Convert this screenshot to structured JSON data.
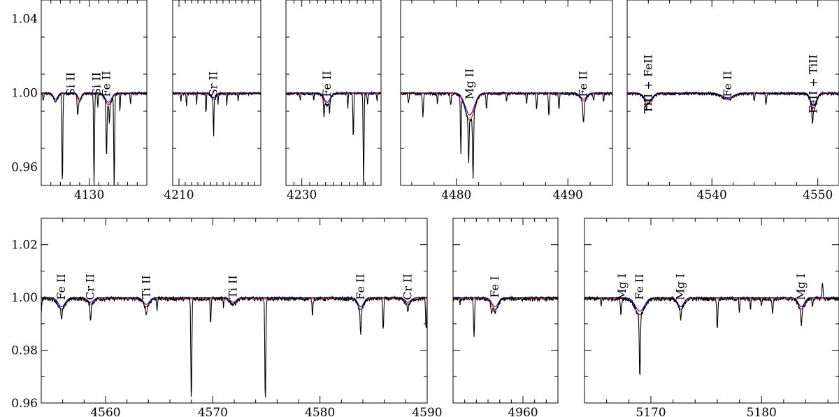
{
  "chart_data": [
    {
      "type": "line",
      "row": 1,
      "xlim": [
        4125,
        4136
      ],
      "ylim": [
        0.95,
        1.05
      ],
      "xticks": [
        4130
      ],
      "yticks": [
        0.96,
        1.0,
        1.04
      ],
      "continuum": 0.9995,
      "bands": [
        [
          4126.5,
          0.5,
          0.004
        ],
        [
          4129.0,
          0.4,
          0.004
        ],
        [
          4132.0,
          0.7,
          0.006
        ]
      ],
      "lines": [
        [
          4125.2,
          0.004,
          0.12
        ],
        [
          4127.2,
          0.05,
          0.1
        ],
        [
          4128.8,
          0.01,
          0.12
        ],
        [
          4130.5,
          0.05,
          0.1
        ],
        [
          4130.9,
          0.008,
          0.08
        ],
        [
          4131.8,
          0.03,
          0.1
        ],
        [
          4132.1,
          0.01,
          0.08
        ],
        [
          4132.6,
          0.05,
          0.1
        ],
        [
          4133.2,
          0.01,
          0.08
        ],
        [
          4134.3,
          0.006,
          0.08
        ]
      ],
      "annotations": [
        {
          "text": "Si II",
          "x": 4128.1
        },
        {
          "text": "Si II",
          "x": 4130.8
        },
        {
          "text": "Fe II",
          "x": 4131.8
        }
      ]
    },
    {
      "type": "line",
      "row": 1,
      "xlim": [
        4209,
        4223
      ],
      "ylim": [
        0.95,
        1.05
      ],
      "xticks": [
        4210
      ],
      "yticks": [
        0.96,
        1.0,
        1.04
      ],
      "continuum": 0.9995,
      "bands": [
        [
          4215.5,
          0.8,
          0.003
        ]
      ],
      "lines": [
        [
          4210.3,
          0.004,
          0.1
        ],
        [
          4211.2,
          0.008,
          0.1
        ],
        [
          4212.8,
          0.006,
          0.1
        ],
        [
          4214.3,
          0.012,
          0.12
        ],
        [
          4215.5,
          0.02,
          0.12
        ],
        [
          4216.2,
          0.006,
          0.1
        ],
        [
          4217.6,
          0.006,
          0.1
        ],
        [
          4219.4,
          0.004,
          0.1
        ]
      ],
      "annotations": [
        {
          "text": "Sr II",
          "x": 4215.5
        }
      ]
    },
    {
      "type": "line",
      "row": 1,
      "xlim": [
        4228,
        4240
      ],
      "ylim": [
        0.95,
        1.05
      ],
      "xticks": [
        4230
      ],
      "yticks": [
        0.96,
        1.0,
        1.04
      ],
      "continuum": 0.9995,
      "bands": [
        [
          4233.2,
          0.8,
          0.006
        ]
      ],
      "lines": [
        [
          4229.8,
          0.004,
          0.1
        ],
        [
          4231.5,
          0.004,
          0.1
        ],
        [
          4232.8,
          0.01,
          0.12
        ],
        [
          4233.5,
          0.006,
          0.1
        ],
        [
          4235.8,
          0.008,
          0.1
        ],
        [
          4236.5,
          0.025,
          0.12
        ],
        [
          4237.8,
          0.05,
          0.12
        ],
        [
          4238.3,
          0.006,
          0.1
        ],
        [
          4239.5,
          0.004,
          0.1
        ]
      ],
      "annotations": [
        {
          "text": "Fe II",
          "x": 4233.2
        }
      ]
    },
    {
      "type": "line",
      "row": 1,
      "xlim": [
        4475,
        4494
      ],
      "ylim": [
        0.95,
        1.05
      ],
      "xticks": [
        4480,
        4490
      ],
      "yticks": [
        0.96,
        1.0,
        1.04
      ],
      "continuum": 0.9995,
      "bands": [
        [
          4481.2,
          0.9,
          0.014
        ],
        [
          4491.4,
          0.6,
          0.004
        ]
      ],
      "lines": [
        [
          4475.7,
          0.005,
          0.1
        ],
        [
          4477.0,
          0.012,
          0.1
        ],
        [
          4478.3,
          0.005,
          0.08
        ],
        [
          4479.5,
          0.006,
          0.1
        ],
        [
          4480.4,
          0.03,
          0.08
        ],
        [
          4481.1,
          0.025,
          0.08
        ],
        [
          4481.5,
          0.035,
          0.1
        ],
        [
          4482.7,
          0.008,
          0.1
        ],
        [
          4484.5,
          0.004,
          0.08
        ],
        [
          4486.3,
          0.006,
          0.08
        ],
        [
          4487.2,
          0.008,
          0.1
        ],
        [
          4488.3,
          0.012,
          0.1
        ],
        [
          4489.2,
          0.008,
          0.1
        ],
        [
          4491.4,
          0.012,
          0.12
        ],
        [
          4492.3,
          0.004,
          0.1
        ],
        [
          4493.2,
          0.004,
          0.08
        ]
      ],
      "annotations": [
        {
          "text": "Mg II",
          "x": 4481.2
        },
        {
          "text": "Fe II",
          "x": 4491.4
        }
      ]
    },
    {
      "type": "line",
      "row": 1,
      "xlim": [
        4532,
        4552
      ],
      "ylim": [
        0.95,
        1.05
      ],
      "xticks": [
        4540,
        4550
      ],
      "yticks": [
        0.96,
        1.0,
        1.04
      ],
      "continuum": 0.9995,
      "bands": [
        [
          4534.0,
          0.8,
          0.005
        ],
        [
          4541.5,
          1.2,
          0.003
        ],
        [
          4549.6,
          0.6,
          0.008
        ]
      ],
      "lines": [
        [
          4533.8,
          0.004,
          0.12
        ],
        [
          4544.0,
          0.004,
          0.1
        ],
        [
          4545.1,
          0.006,
          0.1
        ],
        [
          4549.5,
          0.008,
          0.12
        ]
      ],
      "annotations": [
        {
          "text": "TiII + FeII",
          "x": 4534.0
        },
        {
          "text": "Fe II",
          "x": 4541.5
        },
        {
          "text": "FeII + TiII",
          "x": 4549.6
        }
      ]
    },
    {
      "type": "line",
      "row": 2,
      "xlim": [
        4554,
        4590
      ],
      "ylim": [
        0.96,
        1.03
      ],
      "xticks": [
        4560,
        4570,
        4580,
        4590
      ],
      "yticks": [
        0.96,
        0.98,
        1.0,
        1.02
      ],
      "continuum": 0.9995,
      "bands": [
        [
          4555.9,
          0.7,
          0.004
        ],
        [
          4558.6,
          0.6,
          0.002
        ],
        [
          4563.8,
          0.6,
          0.003
        ],
        [
          4571.9,
          0.6,
          0.002
        ],
        [
          4583.8,
          0.6,
          0.004
        ],
        [
          4588.2,
          0.6,
          0.002
        ]
      ],
      "lines": [
        [
          4554.0,
          0.006,
          0.08
        ],
        [
          4555.9,
          0.004,
          0.1
        ],
        [
          4558.6,
          0.006,
          0.1
        ],
        [
          4563.8,
          0.003,
          0.1
        ],
        [
          4564.8,
          0.004,
          0.08
        ],
        [
          4568.0,
          0.04,
          0.1
        ],
        [
          4569.8,
          0.01,
          0.08
        ],
        [
          4571.0,
          0.003,
          0.08
        ],
        [
          4574.9,
          0.04,
          0.1
        ],
        [
          4579.3,
          0.006,
          0.1
        ],
        [
          4583.8,
          0.01,
          0.1
        ],
        [
          4585.9,
          0.012,
          0.1
        ],
        [
          4588.2,
          0.003,
          0.1
        ],
        [
          4589.9,
          0.012,
          0.1
        ]
      ],
      "annotations": [
        {
          "text": "Fe II",
          "x": 4555.9
        },
        {
          "text": "Cr II",
          "x": 4558.6
        },
        {
          "text": "Ti II",
          "x": 4563.8
        },
        {
          "text": "Ti II",
          "x": 4571.9
        },
        {
          "text": "Fe II",
          "x": 4583.8
        },
        {
          "text": "Cr II",
          "x": 4588.2
        }
      ]
    },
    {
      "type": "line",
      "row": 2,
      "xlim": [
        4954,
        4963
      ],
      "ylim": [
        0.96,
        1.03
      ],
      "xticks": [
        4960
      ],
      "yticks": [
        0.96,
        0.98,
        1.0,
        1.02
      ],
      "continuum": 0.9995,
      "bands": [
        [
          4957.6,
          0.6,
          0.004
        ]
      ],
      "lines": [
        [
          4954.6,
          0.002,
          0.08
        ],
        [
          4955.8,
          0.014,
          0.1
        ],
        [
          4957.3,
          0.004,
          0.1
        ],
        [
          4957.6,
          0.002,
          0.08
        ]
      ],
      "annotations": [
        {
          "text": "Fe I",
          "x": 4957.6
        }
      ]
    },
    {
      "type": "line",
      "row": 2,
      "xlim": [
        5164,
        5187
      ],
      "ylim": [
        0.96,
        1.03
      ],
      "xticks": [
        5170,
        5180
      ],
      "yticks": [
        0.96,
        0.98,
        1.0,
        1.02
      ],
      "continuum": 0.9995,
      "bands": [
        [
          5169.0,
          0.9,
          0.006
        ],
        [
          5172.7,
          0.6,
          0.004
        ],
        [
          5183.6,
          0.6,
          0.004
        ]
      ],
      "lines": [
        [
          5165.5,
          0.003,
          0.08
        ],
        [
          5167.3,
          0.006,
          0.1
        ],
        [
          5169.0,
          0.025,
          0.1
        ],
        [
          5172.7,
          0.004,
          0.08
        ],
        [
          5176.0,
          0.012,
          0.1
        ],
        [
          5178.0,
          0.006,
          0.08
        ],
        [
          5179.0,
          0.004,
          0.08
        ],
        [
          5180.0,
          0.003,
          0.08
        ],
        [
          5181.0,
          0.006,
          0.1
        ],
        [
          5183.6,
          0.006,
          0.1
        ],
        [
          5184.6,
          0.003,
          0.08
        ]
      ],
      "emission": [
        [
          5185.5,
          0.006,
          0.12
        ]
      ],
      "annotations": [
        {
          "text": "Mg I",
          "x": 5167.4
        },
        {
          "text": "Fe II",
          "x": 5169.0
        },
        {
          "text": "Mg I",
          "x": 5172.7
        },
        {
          "text": "Mg I",
          "x": 5183.6
        }
      ]
    }
  ],
  "colors": {
    "observed": "#000000",
    "model_red": "#ff0000",
    "model_blue": "#0000cc"
  }
}
